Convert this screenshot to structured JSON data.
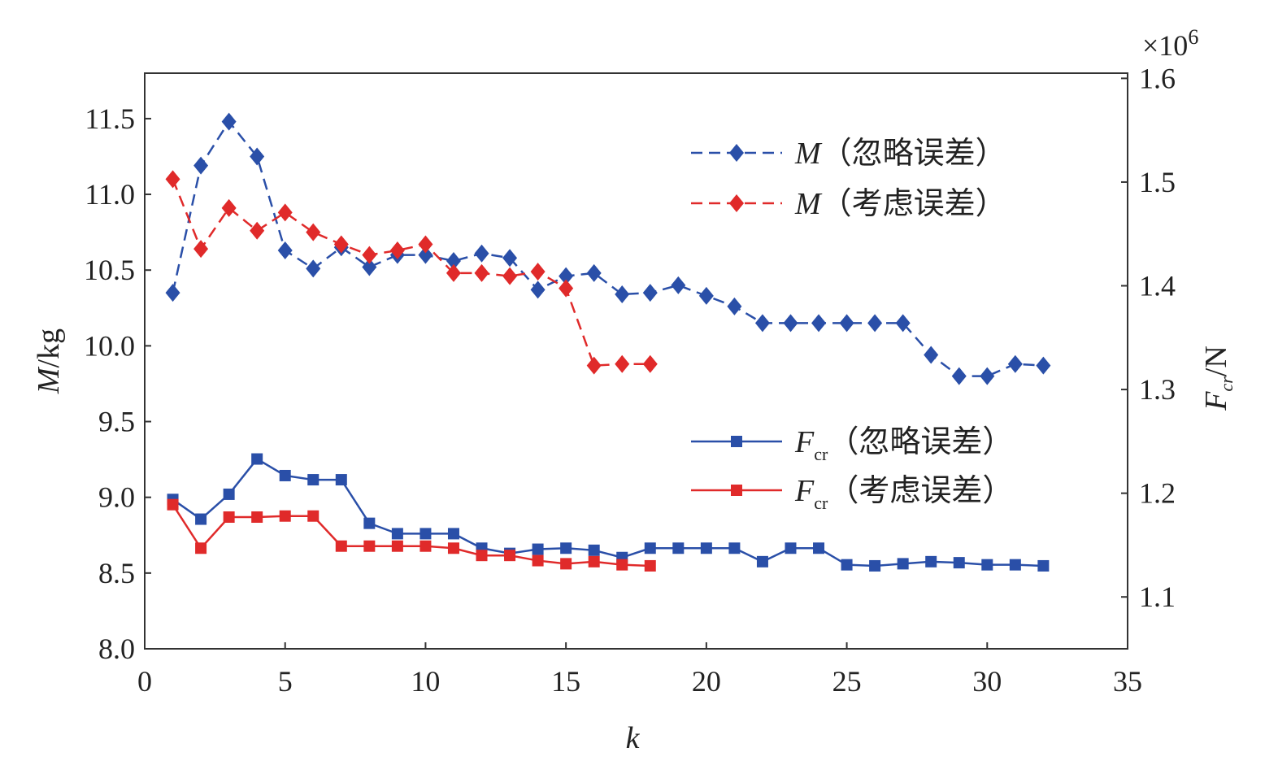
{
  "chart_data": {
    "type": "line",
    "xlabel": "k",
    "ylabel_left": "M/kg",
    "ylabel_right": "F_cr/N",
    "right_axis_multiplier": "×10^6",
    "xlim": [
      0,
      35
    ],
    "ylim_left": [
      8.0,
      11.8
    ],
    "ylim_right": [
      1.05,
      1.605
    ],
    "x_ticks": [
      0,
      5,
      10,
      15,
      20,
      25,
      30,
      35
    ],
    "y_left_ticks": [
      "8.0",
      "8.5",
      "9.0",
      "9.5",
      "10.0",
      "10.5",
      "11.0",
      "11.5"
    ],
    "y_right_ticks": [
      "1.1",
      "1.2",
      "1.3",
      "1.4",
      "1.5",
      "1.6"
    ],
    "grid": false,
    "legend_placement": "right, inside",
    "series": [
      {
        "name": "M（忽略误差）",
        "label_main": "M",
        "label_sub": "",
        "label_suffix": "（忽略误差）",
        "axis": "left",
        "color": "#2a4fa8",
        "dash": true,
        "marker": "diamond",
        "x": [
          1,
          2,
          3,
          4,
          5,
          6,
          7,
          8,
          9,
          10,
          11,
          12,
          13,
          14,
          15,
          16,
          17,
          18,
          19,
          20,
          21,
          22,
          23,
          24,
          25,
          26,
          27,
          28,
          29,
          30,
          31,
          32
        ],
        "y": [
          10.35,
          11.19,
          11.48,
          11.25,
          10.63,
          10.51,
          10.65,
          10.52,
          10.6,
          10.6,
          10.56,
          10.61,
          10.58,
          10.37,
          10.46,
          10.48,
          10.34,
          10.35,
          10.4,
          10.33,
          10.26,
          10.15,
          10.15,
          10.15,
          10.15,
          10.15,
          10.15,
          9.94,
          9.8,
          9.8,
          9.88,
          9.87
        ]
      },
      {
        "name": "M（考虑误差）",
        "label_main": "M",
        "label_sub": "",
        "label_suffix": "（考虑误差）",
        "axis": "left",
        "color": "#e02a2a",
        "dash": true,
        "marker": "diamond",
        "x": [
          1,
          2,
          3,
          4,
          5,
          6,
          7,
          8,
          9,
          10,
          11,
          12,
          13,
          14,
          15,
          16,
          17,
          18
        ],
        "y": [
          11.1,
          10.64,
          10.91,
          10.76,
          10.88,
          10.75,
          10.67,
          10.6,
          10.63,
          10.67,
          10.48,
          10.48,
          10.46,
          10.49,
          10.38,
          9.87,
          9.88,
          9.88
        ]
      },
      {
        "name": "F_cr（忽略误差）",
        "label_main": "F",
        "label_sub": "cr",
        "label_suffix": "（忽略误差）",
        "axis": "right",
        "color": "#2a4fa8",
        "dash": false,
        "marker": "square",
        "x": [
          1,
          2,
          3,
          4,
          5,
          6,
          7,
          8,
          9,
          10,
          11,
          12,
          13,
          14,
          15,
          16,
          17,
          18,
          19,
          20,
          21,
          22,
          23,
          24,
          25,
          26,
          27,
          28,
          29,
          30,
          31,
          32
        ],
        "y": [
          1.194,
          1.175,
          1.199,
          1.233,
          1.217,
          1.213,
          1.213,
          1.171,
          1.161,
          1.161,
          1.161,
          1.147,
          1.142,
          1.146,
          1.147,
          1.145,
          1.138,
          1.147,
          1.147,
          1.147,
          1.147,
          1.134,
          1.147,
          1.147,
          1.131,
          1.13,
          1.132,
          1.134,
          1.133,
          1.131,
          1.131,
          1.13
        ]
      },
      {
        "name": "F_cr（考虑误差）",
        "label_main": "F",
        "label_sub": "cr",
        "label_suffix": "（考虑误差）",
        "axis": "right",
        "color": "#e02a2a",
        "dash": false,
        "marker": "square",
        "x": [
          1,
          2,
          3,
          4,
          5,
          6,
          7,
          8,
          9,
          10,
          11,
          12,
          13,
          14,
          15,
          16,
          17,
          18
        ],
        "y": [
          1.189,
          1.147,
          1.177,
          1.177,
          1.178,
          1.178,
          1.149,
          1.149,
          1.149,
          1.149,
          1.147,
          1.14,
          1.14,
          1.135,
          1.132,
          1.134,
          1.131,
          1.13
        ]
      }
    ]
  }
}
